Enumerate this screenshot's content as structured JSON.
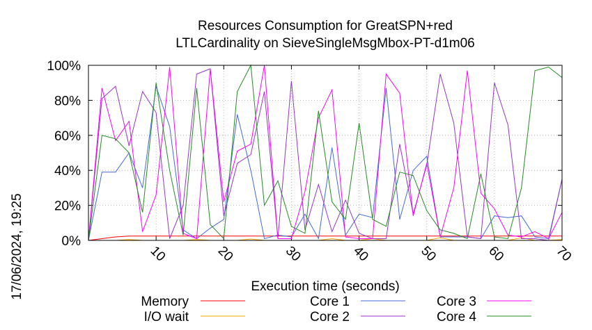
{
  "chart_data": {
    "type": "line",
    "title_line1": "Resources Consumption for GreatSPN+red",
    "title_line2": "LTLCardinality on SieveSingleMsgMbox-PT-d1m06",
    "xlabel": "Execution time (seconds)",
    "ylabel": "",
    "side_label": "17/06/2024, 19:25",
    "xlim": [
      0,
      70
    ],
    "ylim": [
      0,
      100
    ],
    "x_ticks": [
      10,
      20,
      30,
      40,
      50,
      60,
      70
    ],
    "y_ticks": [
      0,
      20,
      40,
      60,
      80,
      100
    ],
    "y_tick_labels": [
      "0%",
      "20%",
      "40%",
      "60%",
      "80%",
      "100%"
    ],
    "grid": true,
    "legend_position": "bottom",
    "series": [
      {
        "name": "Memory",
        "color": "#ff0000",
        "x": [
          0,
          2,
          4,
          6,
          8,
          10,
          12,
          14,
          16,
          18,
          20,
          22,
          24,
          26,
          28,
          30,
          32,
          34,
          36,
          38,
          40,
          42,
          44,
          46,
          48,
          50,
          52,
          54,
          56,
          58,
          60,
          62,
          64,
          66,
          68,
          70
        ],
        "values": [
          0,
          1,
          2,
          2.5,
          2.5,
          2.5,
          2.5,
          2.5,
          2.5,
          2.5,
          2.5,
          2.5,
          2.5,
          2.5,
          2.5,
          2.5,
          2.5,
          2.5,
          2.5,
          2.5,
          2.5,
          2.5,
          2.5,
          2.5,
          2.5,
          2.5,
          2.5,
          2.5,
          2.5,
          2.5,
          2.5,
          2.5,
          2.5,
          2.5,
          2.5,
          2.5
        ]
      },
      {
        "name": "I/O wait",
        "color": "#ffa500",
        "x": [
          0,
          2,
          4,
          6,
          8,
          10,
          12,
          14,
          16,
          18,
          20,
          22,
          24,
          26,
          28,
          30,
          32,
          34,
          36,
          38,
          40,
          42,
          44,
          46,
          48,
          50,
          52,
          54,
          56,
          58,
          60,
          62,
          64,
          66,
          68,
          70
        ],
        "values": [
          0,
          0,
          0,
          0.5,
          0,
          0,
          0,
          0,
          0.5,
          0,
          0,
          0,
          0.8,
          0,
          0,
          0,
          0,
          0,
          1,
          0,
          0,
          1,
          0,
          0,
          0,
          0,
          1.5,
          0,
          0,
          0,
          0,
          0,
          1.5,
          0,
          0,
          0.5
        ]
      },
      {
        "name": "Core 1",
        "color": "#4169e1",
        "x": [
          0,
          2,
          4,
          6,
          8,
          10,
          12,
          14,
          16,
          18,
          20,
          22,
          24,
          26,
          28,
          30,
          32,
          34,
          36,
          38,
          40,
          42,
          44,
          46,
          48,
          50,
          52,
          54,
          56,
          58,
          60,
          62,
          64,
          66,
          68,
          70
        ],
        "values": [
          0,
          39,
          39,
          50,
          30,
          88,
          65,
          6,
          1,
          7,
          12,
          72,
          40,
          1,
          3,
          2,
          15,
          1,
          53,
          3,
          15,
          13,
          87,
          12,
          40,
          48,
          2,
          2,
          2,
          1,
          14,
          13,
          14,
          2,
          1,
          35
        ]
      },
      {
        "name": "Core 2",
        "color": "#9932cc",
        "x": [
          0,
          2,
          4,
          6,
          8,
          10,
          12,
          14,
          16,
          18,
          20,
          22,
          24,
          26,
          28,
          30,
          32,
          34,
          36,
          38,
          40,
          42,
          44,
          46,
          48,
          50,
          52,
          54,
          56,
          58,
          60,
          62,
          64,
          66,
          68,
          70
        ],
        "values": [
          0,
          81,
          88,
          54,
          85,
          73,
          1,
          20,
          95,
          98,
          14,
          44,
          49,
          85,
          1,
          91,
          6,
          32,
          5,
          23,
          4,
          1,
          1,
          55,
          15,
          43,
          95,
          67,
          2,
          1,
          90,
          66,
          1,
          1,
          0,
          35
        ]
      },
      {
        "name": "Core 3",
        "color": "#ff00ff",
        "x": [
          0,
          2,
          4,
          6,
          8,
          10,
          12,
          14,
          16,
          18,
          20,
          22,
          24,
          26,
          28,
          30,
          32,
          34,
          36,
          38,
          40,
          42,
          44,
          46,
          48,
          50,
          52,
          54,
          56,
          58,
          60,
          62,
          64,
          66,
          68,
          70
        ],
        "values": [
          0,
          87,
          57,
          68,
          5,
          26,
          99,
          4,
          1,
          98,
          22,
          51,
          55,
          100,
          1,
          1,
          28,
          70,
          86,
          2,
          1,
          1,
          95,
          84,
          14,
          44,
          2,
          30,
          97,
          27,
          18,
          3,
          2,
          5,
          1,
          16
        ]
      },
      {
        "name": "Core 4",
        "color": "#228b22",
        "x": [
          0,
          2,
          4,
          6,
          8,
          10,
          12,
          14,
          16,
          18,
          20,
          22,
          24,
          26,
          28,
          30,
          32,
          34,
          36,
          38,
          40,
          42,
          44,
          46,
          48,
          50,
          52,
          54,
          56,
          58,
          60,
          62,
          64,
          66,
          68,
          70
        ],
        "values": [
          0,
          60,
          58,
          50,
          16,
          90,
          40,
          3,
          87,
          9,
          1,
          85,
          100,
          20,
          34,
          8,
          4,
          74,
          22,
          12,
          67,
          12,
          8,
          39,
          37,
          17,
          6,
          4,
          1,
          38,
          2,
          1,
          30,
          97,
          99,
          93
        ]
      }
    ]
  }
}
